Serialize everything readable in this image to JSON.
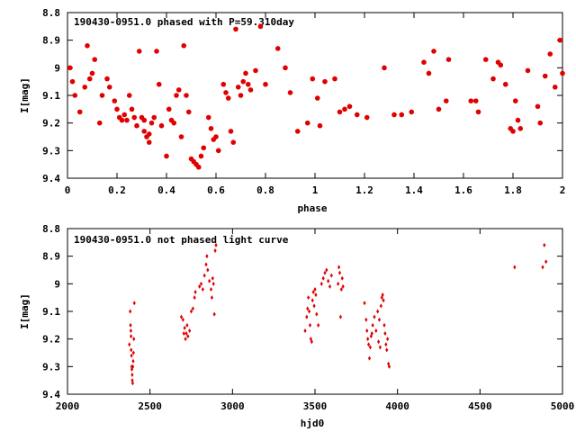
{
  "chart_data": [
    {
      "type": "scatter",
      "title": "190430-0951.0 phased with P=59.310day",
      "xlabel": "phase",
      "ylabel": "I[mag]",
      "xlim": [
        0,
        2
      ],
      "ylim": [
        9.4,
        8.8
      ],
      "y_inverted": true,
      "x_ticks": [
        "0",
        "0.2",
        "0.4",
        "0.6",
        "0.8",
        "1",
        "1.2",
        "1.4",
        "1.6",
        "1.8",
        "2"
      ],
      "y_ticks": [
        "8.8",
        "8.9",
        "9",
        "9.1",
        "9.2",
        "9.3",
        "9.4"
      ],
      "grid": false,
      "marker_color": "#e00000",
      "marker": "filled-circle",
      "points": [
        [
          0.01,
          9.0
        ],
        [
          0.02,
          9.05
        ],
        [
          0.03,
          9.1
        ],
        [
          0.05,
          9.16
        ],
        [
          0.07,
          9.07
        ],
        [
          0.08,
          8.92
        ],
        [
          0.09,
          9.04
        ],
        [
          0.1,
          9.02
        ],
        [
          0.11,
          8.97
        ],
        [
          0.13,
          9.2
        ],
        [
          0.14,
          9.1
        ],
        [
          0.16,
          9.04
        ],
        [
          0.17,
          9.07
        ],
        [
          0.19,
          9.12
        ],
        [
          0.2,
          9.15
        ],
        [
          0.21,
          9.18
        ],
        [
          0.22,
          9.19
        ],
        [
          0.23,
          9.17
        ],
        [
          0.24,
          9.19
        ],
        [
          0.25,
          9.1
        ],
        [
          0.26,
          9.15
        ],
        [
          0.27,
          9.18
        ],
        [
          0.28,
          9.21
        ],
        [
          0.29,
          8.94
        ],
        [
          0.3,
          9.18
        ],
        [
          0.31,
          9.19
        ],
        [
          0.31,
          9.23
        ],
        [
          0.32,
          9.25
        ],
        [
          0.33,
          9.24
        ],
        [
          0.33,
          9.27
        ],
        [
          0.34,
          9.2
        ],
        [
          0.35,
          9.18
        ],
        [
          0.36,
          8.94
        ],
        [
          0.37,
          9.06
        ],
        [
          0.38,
          9.21
        ],
        [
          0.4,
          9.32
        ],
        [
          0.41,
          9.15
        ],
        [
          0.42,
          9.19
        ],
        [
          0.43,
          9.2
        ],
        [
          0.44,
          9.1
        ],
        [
          0.45,
          9.08
        ],
        [
          0.46,
          9.25
        ],
        [
          0.47,
          8.92
        ],
        [
          0.48,
          9.1
        ],
        [
          0.49,
          9.16
        ],
        [
          0.5,
          9.33
        ],
        [
          0.51,
          9.34
        ],
        [
          0.52,
          9.35
        ],
        [
          0.53,
          9.36
        ],
        [
          0.54,
          9.32
        ],
        [
          0.55,
          9.29
        ],
        [
          0.57,
          9.18
        ],
        [
          0.58,
          9.22
        ],
        [
          0.59,
          9.26
        ],
        [
          0.6,
          9.25
        ],
        [
          0.61,
          9.3
        ],
        [
          0.63,
          9.06
        ],
        [
          0.64,
          9.09
        ],
        [
          0.65,
          9.11
        ],
        [
          0.66,
          9.23
        ],
        [
          0.67,
          9.27
        ],
        [
          0.68,
          8.86
        ],
        [
          0.69,
          9.07
        ],
        [
          0.7,
          9.1
        ],
        [
          0.71,
          9.05
        ],
        [
          0.72,
          9.02
        ],
        [
          0.73,
          9.06
        ],
        [
          0.74,
          9.08
        ],
        [
          0.76,
          9.01
        ],
        [
          0.78,
          8.85
        ],
        [
          0.8,
          9.06
        ],
        [
          0.85,
          8.93
        ],
        [
          0.88,
          9.0
        ],
        [
          0.9,
          9.09
        ],
        [
          0.93,
          9.23
        ],
        [
          0.97,
          9.2
        ],
        [
          0.99,
          9.04
        ],
        [
          1.01,
          9.11
        ],
        [
          1.02,
          9.21
        ],
        [
          1.04,
          9.05
        ],
        [
          1.08,
          9.04
        ],
        [
          1.1,
          9.16
        ],
        [
          1.12,
          9.15
        ],
        [
          1.14,
          9.14
        ],
        [
          1.17,
          9.17
        ],
        [
          1.21,
          9.18
        ],
        [
          1.28,
          9.0
        ],
        [
          1.32,
          9.17
        ],
        [
          1.35,
          9.17
        ],
        [
          1.39,
          9.16
        ],
        [
          1.44,
          8.98
        ],
        [
          1.46,
          9.02
        ],
        [
          1.48,
          8.94
        ],
        [
          1.5,
          9.15
        ],
        [
          1.53,
          9.12
        ],
        [
          1.54,
          8.97
        ],
        [
          1.63,
          9.12
        ],
        [
          1.65,
          9.12
        ],
        [
          1.66,
          9.16
        ],
        [
          1.69,
          8.97
        ],
        [
          1.72,
          9.04
        ],
        [
          1.74,
          8.98
        ],
        [
          1.75,
          8.99
        ],
        [
          1.77,
          9.06
        ],
        [
          1.79,
          9.22
        ],
        [
          1.8,
          9.23
        ],
        [
          1.81,
          9.12
        ],
        [
          1.82,
          9.19
        ],
        [
          1.83,
          9.22
        ],
        [
          1.86,
          9.01
        ],
        [
          1.9,
          9.14
        ],
        [
          1.91,
          9.2
        ],
        [
          1.93,
          9.03
        ],
        [
          1.95,
          8.95
        ],
        [
          1.97,
          9.07
        ],
        [
          1.99,
          8.9
        ],
        [
          2.0,
          9.02
        ]
      ]
    },
    {
      "type": "scatter",
      "title": "190430-0951.0 not phased light curve",
      "xlabel": "hjd0",
      "ylabel": "I[mag]",
      "xlim": [
        2000,
        5000
      ],
      "ylim": [
        9.4,
        8.8
      ],
      "y_inverted": true,
      "x_ticks": [
        "2000",
        "2500",
        "3000",
        "3500",
        "4000",
        "4500",
        "5000"
      ],
      "y_ticks": [
        "8.8",
        "8.9",
        "9",
        "9.1",
        "9.2",
        "9.3",
        "9.4"
      ],
      "grid": false,
      "marker_color": "#e00000",
      "marker": "small-diamond",
      "points": [
        [
          2375,
          9.22
        ],
        [
          2380,
          9.1
        ],
        [
          2382,
          9.15
        ],
        [
          2384,
          9.17
        ],
        [
          2385,
          9.19
        ],
        [
          2386,
          9.24
        ],
        [
          2388,
          9.26
        ],
        [
          2389,
          9.3
        ],
        [
          2390,
          9.31
        ],
        [
          2392,
          9.33
        ],
        [
          2393,
          9.35
        ],
        [
          2395,
          9.36
        ],
        [
          2396,
          9.3
        ],
        [
          2398,
          9.28
        ],
        [
          2400,
          9.25
        ],
        [
          2402,
          9.2
        ],
        [
          2405,
          9.07
        ],
        [
          2690,
          9.12
        ],
        [
          2700,
          9.13
        ],
        [
          2705,
          9.18
        ],
        [
          2710,
          9.16
        ],
        [
          2715,
          9.2
        ],
        [
          2720,
          9.18
        ],
        [
          2725,
          9.15
        ],
        [
          2730,
          9.19
        ],
        [
          2740,
          9.17
        ],
        [
          2750,
          9.1
        ],
        [
          2760,
          9.09
        ],
        [
          2770,
          9.05
        ],
        [
          2775,
          9.03
        ],
        [
          2800,
          9.01
        ],
        [
          2810,
          9.0
        ],
        [
          2820,
          9.02
        ],
        [
          2830,
          8.97
        ],
        [
          2840,
          8.93
        ],
        [
          2845,
          8.9
        ],
        [
          2850,
          8.95
        ],
        [
          2860,
          8.99
        ],
        [
          2870,
          9.02
        ],
        [
          2875,
          9.05
        ],
        [
          2880,
          8.98
        ],
        [
          2885,
          9.0
        ],
        [
          2890,
          9.11
        ],
        [
          2895,
          8.88
        ],
        [
          2900,
          8.86
        ],
        [
          3440,
          9.17
        ],
        [
          3450,
          9.12
        ],
        [
          3455,
          9.09
        ],
        [
          3460,
          9.05
        ],
        [
          3465,
          9.1
        ],
        [
          3470,
          9.15
        ],
        [
          3475,
          9.2
        ],
        [
          3480,
          9.21
        ],
        [
          3485,
          9.06
        ],
        [
          3490,
          9.03
        ],
        [
          3495,
          9.08
        ],
        [
          3500,
          9.02
        ],
        [
          3505,
          9.04
        ],
        [
          3510,
          9.11
        ],
        [
          3520,
          9.15
        ],
        [
          3540,
          9.0
        ],
        [
          3550,
          8.98
        ],
        [
          3560,
          8.96
        ],
        [
          3570,
          8.95
        ],
        [
          3580,
          8.99
        ],
        [
          3590,
          9.01
        ],
        [
          3600,
          8.97
        ],
        [
          3640,
          9.0
        ],
        [
          3645,
          8.94
        ],
        [
          3650,
          8.96
        ],
        [
          3655,
          9.12
        ],
        [
          3660,
          9.02
        ],
        [
          3665,
          8.98
        ],
        [
          3670,
          9.01
        ],
        [
          3800,
          9.07
        ],
        [
          3810,
          9.13
        ],
        [
          3815,
          9.17
        ],
        [
          3820,
          9.2
        ],
        [
          3825,
          9.22
        ],
        [
          3830,
          9.27
        ],
        [
          3835,
          9.23
        ],
        [
          3840,
          9.19
        ],
        [
          3845,
          9.18
        ],
        [
          3850,
          9.15
        ],
        [
          3860,
          9.12
        ],
        [
          3870,
          9.17
        ],
        [
          3880,
          9.1
        ],
        [
          3885,
          9.21
        ],
        [
          3890,
          9.13
        ],
        [
          3895,
          9.23
        ],
        [
          3900,
          9.08
        ],
        [
          3905,
          9.05
        ],
        [
          3910,
          9.04
        ],
        [
          3915,
          9.06
        ],
        [
          3920,
          9.15
        ],
        [
          3925,
          9.18
        ],
        [
          3930,
          9.22
        ],
        [
          3935,
          9.24
        ],
        [
          3940,
          9.2
        ],
        [
          3945,
          9.29
        ],
        [
          3950,
          9.3
        ],
        [
          4710,
          8.94
        ],
        [
          4880,
          8.94
        ],
        [
          4890,
          8.86
        ],
        [
          4900,
          8.92
        ]
      ]
    }
  ]
}
